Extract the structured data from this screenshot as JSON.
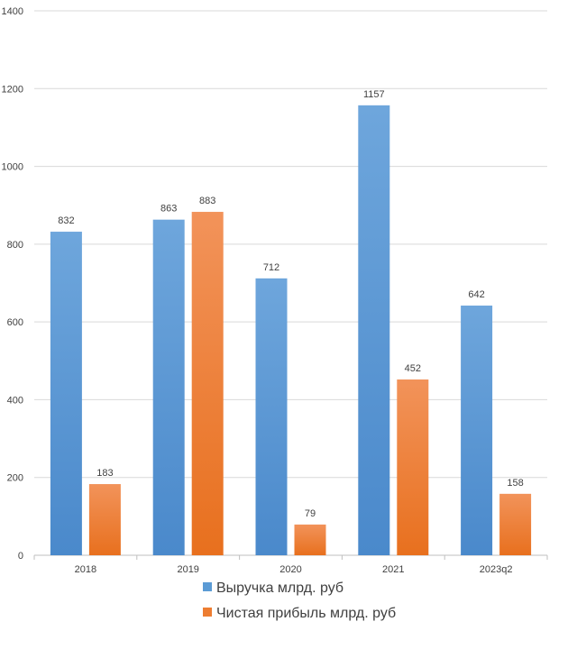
{
  "chart_data": {
    "type": "bar",
    "title": "",
    "xlabel": "",
    "ylabel": "",
    "ylim": [
      0,
      1400
    ],
    "yticks": [
      0,
      200,
      400,
      600,
      800,
      1000,
      1200,
      1400
    ],
    "grid": true,
    "legend_position": "bottom",
    "categories": [
      "2018",
      "2019",
      "2020",
      "2021",
      "2023q2"
    ],
    "series": [
      {
        "name": "Выручка млрд. руб",
        "color": "#5b9bd5",
        "values": [
          832,
          863,
          712,
          1157,
          642
        ]
      },
      {
        "name": "Чистая прибыль млрд. руб",
        "color": "#ed7d31",
        "values": [
          183,
          883,
          79,
          452,
          158
        ]
      }
    ]
  }
}
